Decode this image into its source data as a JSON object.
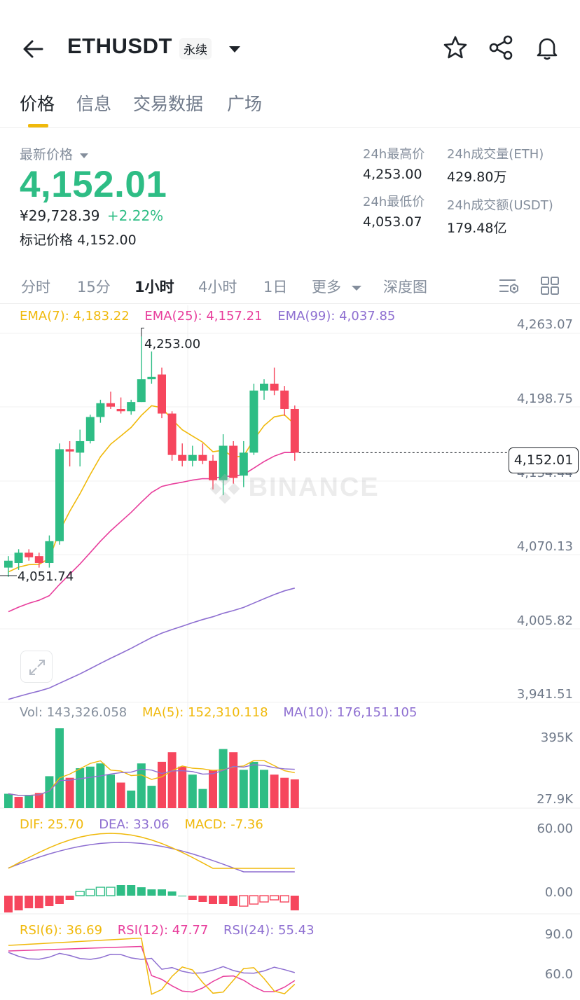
{
  "header": {
    "symbol": "ETHUSDT",
    "contract_badge": "永续",
    "icons": [
      "back-arrow-icon",
      "caret-down-icon",
      "star-icon",
      "share-icon",
      "bell-icon"
    ]
  },
  "tabs": [
    {
      "label": "价格",
      "active": true
    },
    {
      "label": "信息",
      "active": false
    },
    {
      "label": "交易数据",
      "active": false
    },
    {
      "label": "广场",
      "active": false
    }
  ],
  "price": {
    "latest_label": "最新价格",
    "last": "4,152.01",
    "cny": "¥29,728.39",
    "change_pct": "+2.22%",
    "mark_label": "标记价格",
    "mark_value": "4,152.00"
  },
  "stats": {
    "high_label": "24h最高价",
    "high": "4,253.00",
    "low_label": "24h最低价",
    "low": "4,053.07",
    "vol_label": "24h成交量(ETH)",
    "vol": "429.80万",
    "amt_label": "24h成交额(USDT)",
    "amt": "179.48亿"
  },
  "intervals": {
    "items": [
      "分时",
      "15分",
      "1小时",
      "4小时",
      "1日",
      "更多",
      "深度图"
    ],
    "active_index": 2
  },
  "indicators": {
    "ema7": "EMA(7): 4,183.22",
    "ema25": "EMA(25): 4,157.21",
    "ema99": "EMA(99): 4,037.85",
    "vol": "Vol: 143,326.058",
    "ma5": "MA(5): 152,310.118",
    "ma10": "MA(10): 176,151.105",
    "dif": "DIF: 25.70",
    "dea": "DEA: 33.06",
    "macd": "MACD: -7.36",
    "rsi6": "RSI(6): 36.69",
    "rsi12": "RSI(12): 47.77",
    "rsi24": "RSI(24): 55.43"
  },
  "axis": {
    "price_ticks": [
      "4,263.07",
      "4,198.75",
      "4,134.44",
      "4,070.13",
      "4,005.82",
      "3,941.51"
    ],
    "vol_ticks": [
      "395K",
      "27.9K"
    ],
    "macd_ticks": [
      "60.00",
      "0.00"
    ],
    "rsi_ticks": [
      "90.0",
      "60.0"
    ]
  },
  "chart_annotations": {
    "current_price": "4,152.01",
    "high_marker": "4,253.00",
    "low_marker": "4,051.74",
    "watermark": "BINANCE"
  },
  "colors": {
    "up": "#2ebd85",
    "down": "#f6465d",
    "ema7": "#f0b90b",
    "ema25": "#e83e9c",
    "ema99": "#8e6fd1",
    "accent": "#f0b90b"
  },
  "chart_data": {
    "type": "candlestick",
    "y_range": [
      3941.51,
      4263.07
    ],
    "candles": [
      {
        "o": 4052,
        "h": 4062,
        "l": 4044,
        "c": 4058
      },
      {
        "o": 4056,
        "h": 4068,
        "l": 4050,
        "c": 4065
      },
      {
        "o": 4065,
        "h": 4068,
        "l": 4058,
        "c": 4061
      },
      {
        "o": 4062,
        "h": 4065,
        "l": 4052,
        "c": 4056
      },
      {
        "o": 4056,
        "h": 4080,
        "l": 4052,
        "c": 4075
      },
      {
        "o": 4075,
        "h": 4160,
        "l": 4072,
        "c": 4155
      },
      {
        "o": 4155,
        "h": 4162,
        "l": 4140,
        "c": 4153
      },
      {
        "o": 4152,
        "h": 4172,
        "l": 4140,
        "c": 4162
      },
      {
        "o": 4162,
        "h": 4185,
        "l": 4160,
        "c": 4183
      },
      {
        "o": 4183,
        "h": 4198,
        "l": 4178,
        "c": 4195
      },
      {
        "o": 4195,
        "h": 4205,
        "l": 4190,
        "c": 4192
      },
      {
        "o": 4190,
        "h": 4200,
        "l": 4186,
        "c": 4188
      },
      {
        "o": 4188,
        "h": 4198,
        "l": 4185,
        "c": 4196
      },
      {
        "o": 4196,
        "h": 4253,
        "l": 4196,
        "c": 4216
      },
      {
        "o": 4216,
        "h": 4240,
        "l": 4212,
        "c": 4218
      },
      {
        "o": 4220,
        "h": 4226,
        "l": 4182,
        "c": 4186
      },
      {
        "o": 4186,
        "h": 4188,
        "l": 4145,
        "c": 4150
      },
      {
        "o": 4150,
        "h": 4160,
        "l": 4140,
        "c": 4145
      },
      {
        "o": 4145,
        "h": 4158,
        "l": 4140,
        "c": 4150
      },
      {
        "o": 4150,
        "h": 4160,
        "l": 4142,
        "c": 4145
      },
      {
        "o": 4145,
        "h": 4150,
        "l": 4120,
        "c": 4128
      },
      {
        "o": 4128,
        "h": 4168,
        "l": 4115,
        "c": 4158
      },
      {
        "o": 4158,
        "h": 4162,
        "l": 4125,
        "c": 4130
      },
      {
        "o": 4132,
        "h": 4162,
        "l": 4122,
        "c": 4152
      },
      {
        "o": 4152,
        "h": 4212,
        "l": 4150,
        "c": 4206
      },
      {
        "o": 4206,
        "h": 4216,
        "l": 4198,
        "c": 4212
      },
      {
        "o": 4212,
        "h": 4226,
        "l": 4202,
        "c": 4206
      },
      {
        "o": 4206,
        "h": 4210,
        "l": 4184,
        "c": 4190
      },
      {
        "o": 4190,
        "h": 4193,
        "l": 4145,
        "c": 4152
      }
    ],
    "volumes": [
      {
        "v": 18,
        "up": true
      },
      {
        "v": 14,
        "up": false
      },
      {
        "v": 16,
        "up": true
      },
      {
        "v": 19,
        "up": false
      },
      {
        "v": 40,
        "up": true
      },
      {
        "v": 100,
        "up": true
      },
      {
        "v": 38,
        "up": false
      },
      {
        "v": 50,
        "up": true
      },
      {
        "v": 52,
        "up": true
      },
      {
        "v": 56,
        "up": true
      },
      {
        "v": 42,
        "up": true
      },
      {
        "v": 32,
        "up": false
      },
      {
        "v": 22,
        "up": true
      },
      {
        "v": 56,
        "up": true
      },
      {
        "v": 28,
        "up": true
      },
      {
        "v": 58,
        "up": false
      },
      {
        "v": 70,
        "up": false
      },
      {
        "v": 52,
        "up": false
      },
      {
        "v": 42,
        "up": true
      },
      {
        "v": 24,
        "up": true
      },
      {
        "v": 48,
        "up": false
      },
      {
        "v": 74,
        "up": true
      },
      {
        "v": 70,
        "up": false
      },
      {
        "v": 48,
        "up": true
      },
      {
        "v": 58,
        "up": true
      },
      {
        "v": 48,
        "up": true
      },
      {
        "v": 42,
        "up": false
      },
      {
        "v": 38,
        "up": false
      },
      {
        "v": 36,
        "up": false
      }
    ],
    "macd_hist": [
      -8,
      -7,
      -6,
      -6,
      -5,
      -4,
      -2,
      2,
      3,
      4,
      4,
      5,
      5,
      4,
      3,
      3,
      2,
      0,
      -2,
      -3,
      -4,
      -4,
      -5,
      -5,
      -4,
      -3,
      -2,
      -3,
      -7
    ]
  }
}
